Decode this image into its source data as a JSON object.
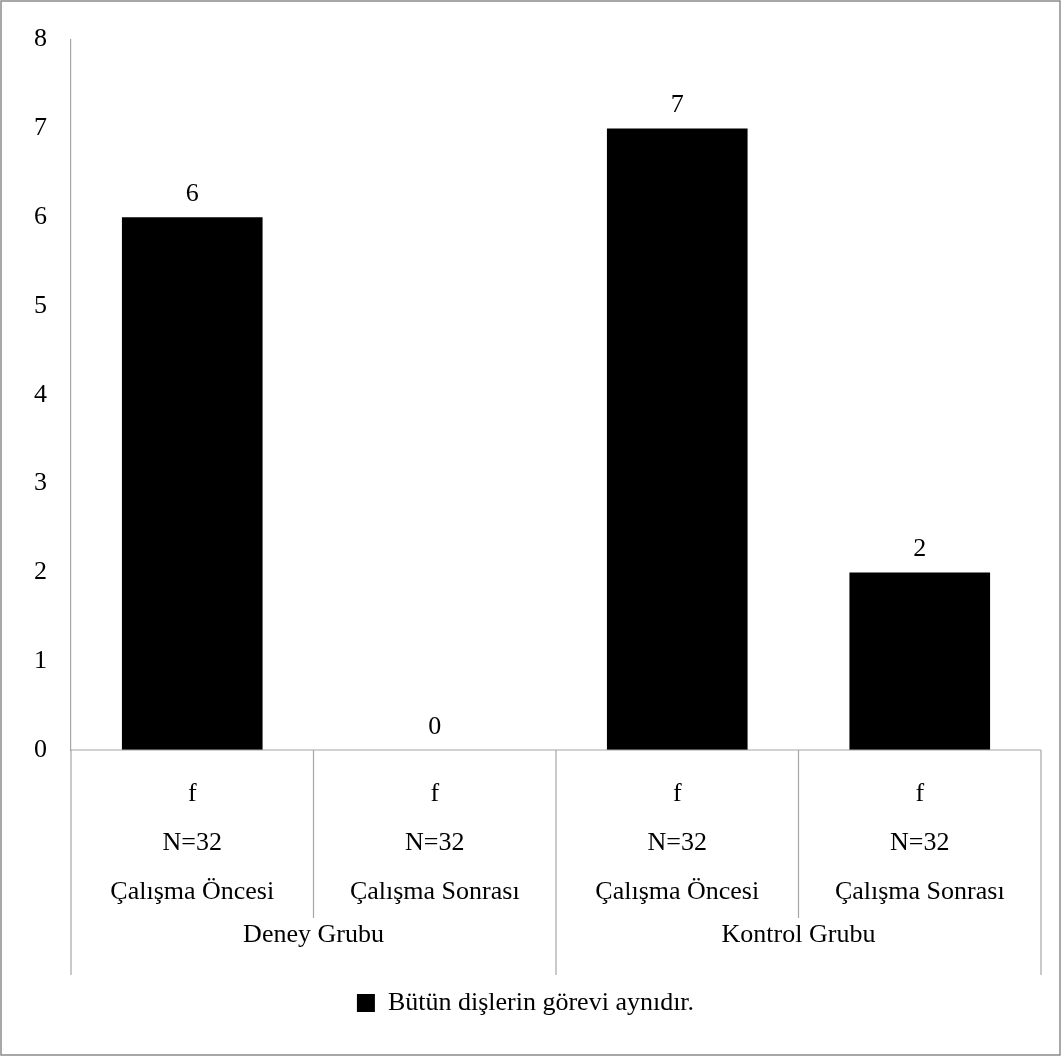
{
  "chart_data": {
    "type": "bar",
    "categories": [
      "f\nN=32\nÇalışma Öncesi",
      "f\nN=32\nÇalışma Sonrası",
      "f\nN=32\nÇalışma Öncesi",
      "f\nN=32\nÇalışma Sonrası"
    ],
    "annotations": [
      "Deney Grubu",
      "Kontrol Grubu"
    ],
    "series": [
      {
        "name": "Bütün dişlerin görevi aynıdır.",
        "color": "#000000",
        "values": [
          6,
          0,
          7,
          2
        ]
      }
    ],
    "ylim": [
      0,
      8
    ],
    "yticks": [
      0,
      1,
      2,
      3,
      4,
      5,
      6,
      7,
      8
    ],
    "grid": false,
    "legend": "bottom",
    "data_labels": true
  }
}
